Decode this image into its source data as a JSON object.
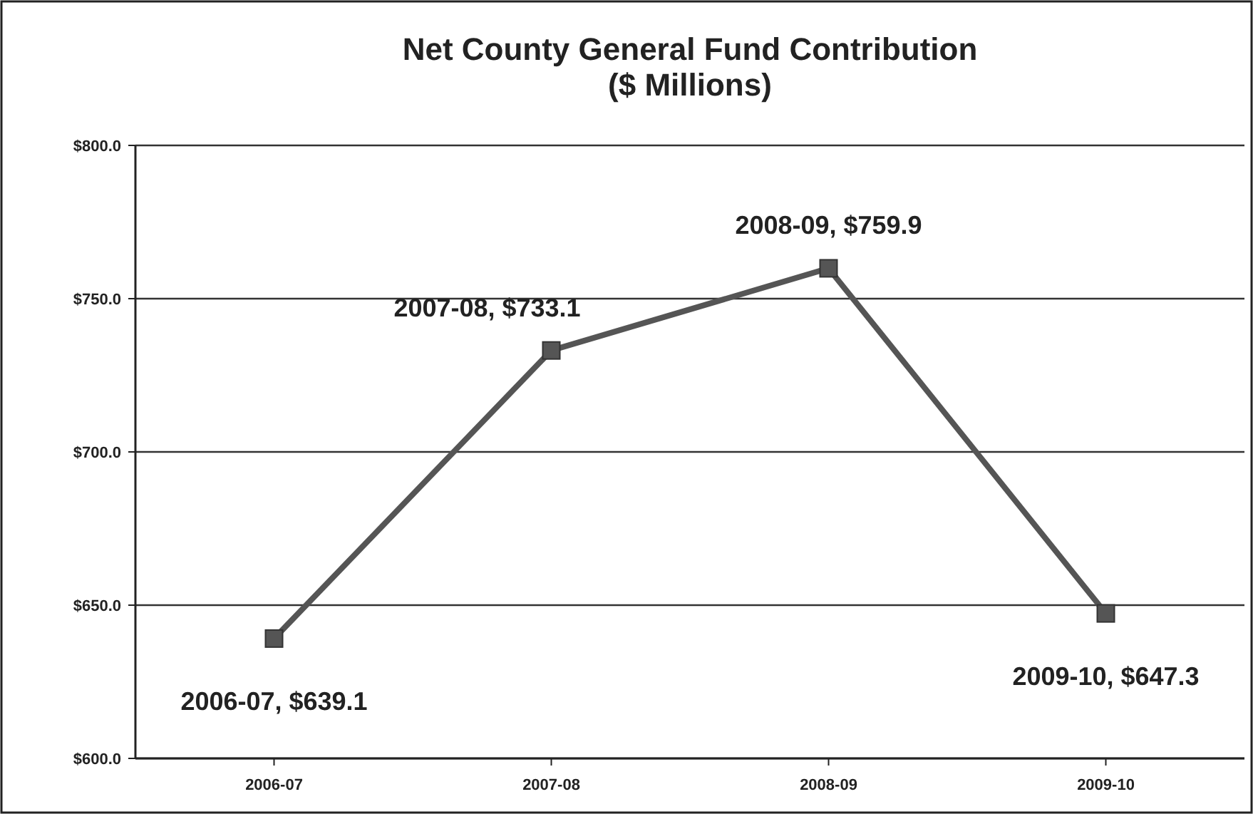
{
  "chart_data": {
    "type": "line",
    "title": "Net County General Fund Contribution\n($ Millions)",
    "categories": [
      "2006-07",
      "2007-08",
      "2008-09",
      "2009-10"
    ],
    "series": [
      {
        "color": "#555555",
        "values": [
          639.1,
          733.1,
          759.9,
          647.3
        ],
        "value_labels": [
          "2006-07, $639.1",
          "2007-08, $733.1",
          "2008-09, $759.9",
          "2009-10, $647.3"
        ]
      }
    ],
    "ylim": [
      600,
      800
    ],
    "yticks": [
      {
        "value": 600,
        "label": "$600.0"
      },
      {
        "value": 650,
        "label": "$650.0"
      },
      {
        "value": 700,
        "label": "$700.0"
      },
      {
        "value": 750,
        "label": "$750.0"
      },
      {
        "value": 800,
        "label": "$800.0"
      }
    ],
    "grid": "y",
    "marker": "square",
    "line_style": "solid"
  }
}
